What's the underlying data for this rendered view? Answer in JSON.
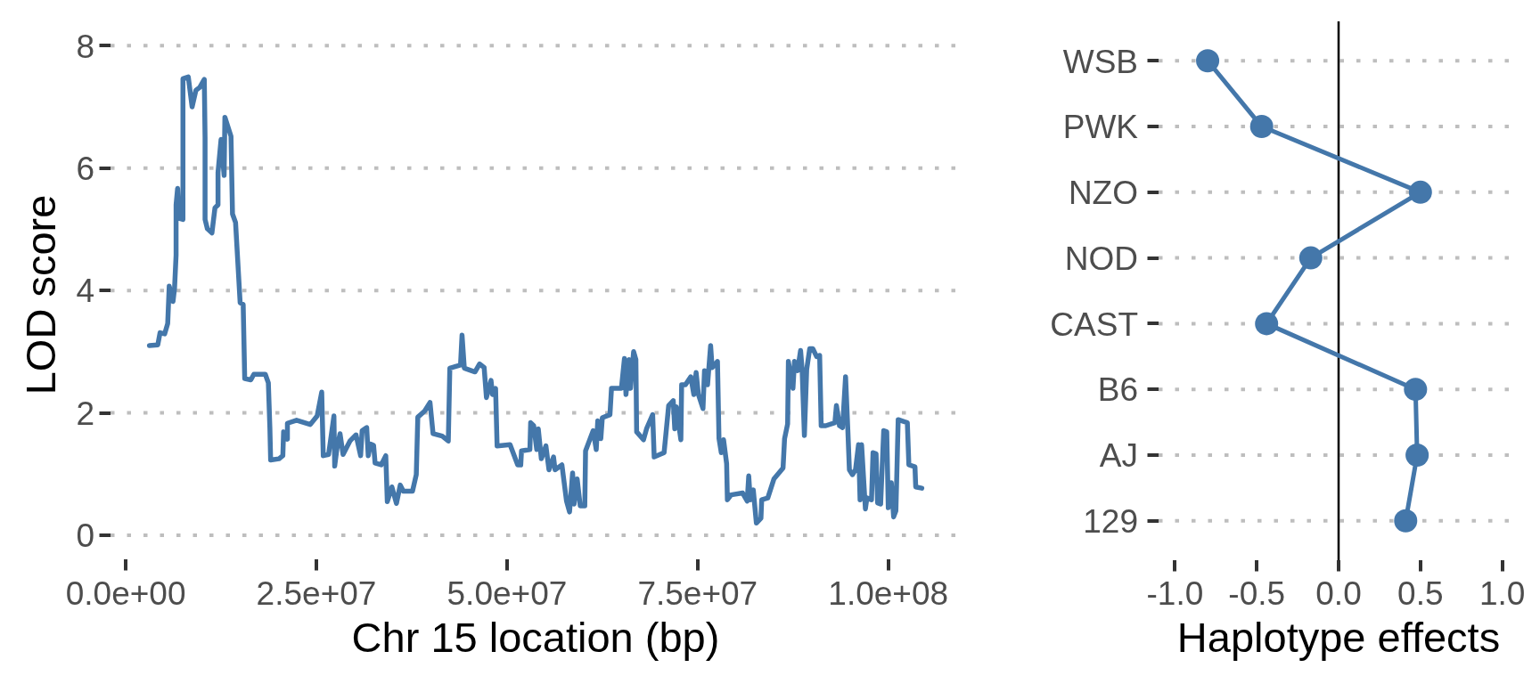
{
  "chart_data": [
    {
      "type": "line",
      "xlabel": "Chr 15 location (bp)",
      "ylabel": "LOD score",
      "color": "#4477aa",
      "x": [
        3100000,
        4200000,
        4500000,
        5100000,
        5500000,
        5700000,
        6200000,
        6400000,
        6600000,
        6600000,
        6800000,
        7000000,
        7500000,
        7500000,
        8200000,
        8700000,
        9200000,
        9700000,
        10300000,
        10400000,
        10400000,
        10700000,
        11300000,
        11700000,
        12100000,
        12100000,
        12500000,
        12900000,
        13000000,
        13800000,
        14000000,
        14400000,
        15000000,
        15400000,
        15600000,
        16400000,
        16800000,
        18300000,
        18700000,
        18900000,
        19000000,
        20100000,
        20600000,
        20700000,
        21200000,
        21200000,
        22400000,
        24200000,
        25100000,
        25700000,
        25900000,
        26600000,
        27300000,
        27400000,
        27700000,
        28100000,
        28500000,
        29400000,
        30200000,
        30800000,
        31000000,
        31600000,
        31800000,
        32100000,
        32500000,
        32700000,
        33500000,
        34100000,
        34300000,
        34900000,
        35500000,
        36000000,
        36400000,
        37600000,
        38100000,
        38300000,
        39200000,
        39900000,
        40300000,
        41500000,
        42300000,
        42500000,
        43900000,
        44100000,
        44400000,
        45800000,
        46400000,
        47000000,
        47300000,
        47900000,
        48100000,
        48500000,
        48700000,
        50400000,
        51400000,
        51800000,
        51900000,
        53000000,
        53100000,
        53500000,
        53900000,
        54100000,
        54500000,
        55100000,
        55500000,
        56100000,
        56300000,
        57200000,
        57800000,
        58200000,
        58600000,
        58800000,
        59200000,
        59600000,
        60200000,
        60300000,
        61300000,
        61700000,
        61900000,
        62300000,
        62500000,
        63500000,
        63700000,
        65000000,
        65400000,
        65600000,
        66000000,
        66200000,
        66600000,
        66900000,
        67000000,
        67900000,
        68300000,
        69100000,
        69300000,
        70600000,
        71200000,
        71800000,
        72000000,
        72200000,
        72800000,
        72900000,
        73400000,
        74100000,
        74500000,
        74800000,
        75100000,
        75700000,
        75900000,
        76300000,
        76700000,
        76900000,
        77600000,
        77800000,
        78100000,
        78400000,
        78800000,
        78900000,
        79400000,
        80900000,
        81500000,
        81700000,
        81900000,
        82300000,
        82700000,
        83300000,
        83400000,
        84200000,
        85000000,
        86200000,
        86400000,
        86800000,
        86900000,
        87500000,
        87700000,
        88100000,
        88500000,
        88700000,
        89000000,
        89300000,
        89700000,
        90100000,
        90600000,
        91000000,
        91200000,
        91800000,
        93000000,
        93200000,
        93600000,
        94000000,
        94400000,
        94700000,
        94900000,
        95300000,
        95700000,
        96100000,
        96300000,
        96500000,
        97000000,
        97200000,
        97800000,
        98000000,
        98400000,
        98600000,
        99000000,
        99400000,
        99800000,
        100000000,
        100400000,
        100700000,
        101000000,
        101300000,
        102500000,
        102700000,
        103500000,
        103600000,
        104400000
      ],
      "values": [
        3.1,
        3.11,
        3.31,
        3.29,
        3.46,
        4.07,
        3.82,
        4.04,
        4.58,
        5.4,
        5.67,
        5.18,
        5.16,
        7.46,
        7.49,
        7.0,
        7.27,
        7.32,
        7.45,
        6.5,
        5.16,
        5.01,
        4.94,
        5.35,
        5.4,
        5.93,
        6.47,
        5.88,
        6.83,
        6.52,
        5.25,
        5.11,
        3.8,
        3.77,
        2.56,
        2.54,
        2.63,
        2.63,
        2.49,
        1.76,
        1.23,
        1.25,
        1.3,
        1.69,
        1.57,
        1.83,
        1.88,
        1.81,
        1.95,
        2.34,
        1.3,
        1.32,
        1.95,
        1.13,
        1.42,
        1.66,
        1.32,
        1.54,
        1.64,
        1.3,
        1.71,
        1.76,
        1.3,
        1.49,
        1.47,
        1.18,
        1.15,
        1.3,
        0.55,
        0.79,
        0.52,
        0.82,
        0.72,
        0.72,
        0.99,
        1.93,
        2.03,
        2.17,
        1.66,
        1.62,
        1.54,
        2.73,
        2.78,
        3.27,
        2.73,
        2.67,
        2.8,
        2.74,
        2.25,
        2.53,
        2.3,
        2.4,
        1.46,
        1.48,
        1.15,
        1.15,
        1.38,
        1.4,
        1.84,
        1.79,
        1.4,
        1.74,
        1.25,
        1.46,
        1.07,
        1.28,
        1.07,
        1.15,
        0.56,
        0.38,
        1.02,
        0.51,
        0.92,
        0.48,
        0.48,
        1.38,
        1.71,
        1.4,
        1.87,
        1.58,
        1.92,
        1.97,
        2.4,
        2.4,
        2.89,
        2.3,
        2.87,
        2.4,
        3.0,
        2.87,
        1.69,
        1.56,
        1.74,
        1.97,
        1.28,
        1.35,
        2.12,
        2.2,
        1.74,
        2.1,
        1.56,
        2.46,
        2.46,
        2.59,
        2.3,
        2.66,
        2.3,
        2.07,
        2.69,
        2.46,
        3.1,
        2.74,
        2.84,
        1.58,
        1.35,
        1.56,
        1.17,
        0.58,
        0.66,
        0.69,
        0.56,
        0.97,
        0.58,
        0.74,
        0.2,
        0.28,
        0.58,
        0.61,
        0.92,
        1.1,
        1.58,
        1.82,
        2.84,
        2.4,
        2.84,
        2.69,
        3.02,
        2.71,
        1.63,
        2.71,
        3.05,
        3.05,
        2.92,
        2.94,
        1.79,
        1.79,
        1.84,
        2.12,
        1.79,
        1.76,
        2.59,
        1.71,
        1.07,
        0.99,
        1.07,
        1.48,
        0.58,
        1.48,
        0.43,
        0.61,
        0.58,
        1.35,
        1.33,
        0.53,
        0.51,
        1.71,
        1.69,
        0.45,
        0.86,
        0.3,
        0.4,
        1.89,
        1.84,
        1.15,
        1.12,
        0.79,
        0.77
      ],
      "xlim": [
        -2000000,
        109500000
      ],
      "xticks": [
        {
          "value": 0,
          "label": "0.0e+00"
        },
        {
          "value": 25000000,
          "label": "2.5e+07"
        },
        {
          "value": 50000000,
          "label": "5.0e+07"
        },
        {
          "value": 75000000,
          "label": "7.5e+07"
        },
        {
          "value": 100000000,
          "label": "1.0e+08"
        }
      ],
      "ylim": [
        0,
        8
      ],
      "yticks": [
        0,
        2,
        4,
        6,
        8
      ],
      "grid": "y"
    },
    {
      "type": "line",
      "orientation": "horizontal",
      "xlabel": "Haplotype effects",
      "color": "#4477aa",
      "marker": "circle",
      "categories": [
        "WSB",
        "PWK",
        "NZO",
        "NOD",
        "CAST",
        "B6",
        "AJ",
        "129"
      ],
      "values": [
        -0.8,
        -0.47,
        0.5,
        -0.17,
        -0.44,
        0.47,
        0.48,
        0.41
      ],
      "xlim": [
        -1.1,
        1.1
      ],
      "xticks": [
        {
          "value": -1,
          "label": "-1.0"
        },
        {
          "value": -0.5,
          "label": "-0.5"
        },
        {
          "value": 0,
          "label": "0.0"
        },
        {
          "value": 0.5,
          "label": "0.5"
        },
        {
          "value": 1,
          "label": "1.0"
        }
      ],
      "grid": "y",
      "ref_lines": [
        {
          "axis": "x",
          "value": 0,
          "color": "#000000"
        }
      ]
    }
  ]
}
